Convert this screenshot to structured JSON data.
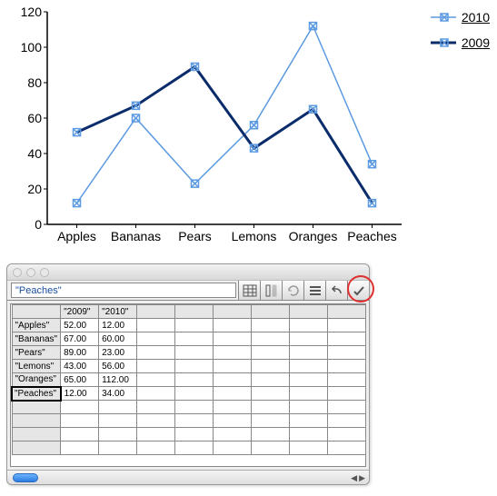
{
  "chart": {
    "type": "line",
    "categories": [
      "Apples",
      "Bananas",
      "Pears",
      "Lemons",
      "Oranges",
      "Peaches"
    ],
    "series": [
      {
        "name": "2010",
        "values": [
          12,
          60,
          23,
          56,
          112,
          34
        ],
        "color": "#5c9ae1",
        "line_width": 1.5,
        "marker": "x-box",
        "marker_size": 8
      },
      {
        "name": "2009",
        "values": [
          52,
          67,
          89,
          43,
          65,
          12
        ],
        "color": "#0b2c6b",
        "line_width": 3,
        "marker": "x-box",
        "marker_size": 8,
        "marker_color": "#5c9ae1"
      }
    ],
    "ylim": [
      0,
      120
    ],
    "ytick_step": 20,
    "axis_color": "#000000",
    "label_fontsize": 14,
    "tick_fontsize": 14,
    "background_color": "#ffffff"
  },
  "legend": {
    "position": "right",
    "items": [
      {
        "label": "2010",
        "series_index": 0
      },
      {
        "label": "2009",
        "series_index": 1
      }
    ]
  },
  "data_window": {
    "formula_bar_value": "\"Peaches\"",
    "toolbar_icons": [
      "table-icon",
      "column-icon",
      "refresh-icon",
      "rows-icon",
      "undo-icon",
      "confirm-icon"
    ],
    "highlighted_icon_index": 5,
    "columns": [
      "",
      "\"2009\"",
      "\"2010\""
    ],
    "rows": [
      [
        "\"Apples\"",
        "52.00",
        "12.00"
      ],
      [
        "\"Bananas\"",
        "67.00",
        "60.00"
      ],
      [
        "\"Pears\"",
        "89.00",
        "23.00"
      ],
      [
        "\"Lemons\"",
        "43.00",
        "56.00"
      ],
      [
        "\"Oranges\"",
        "65.00",
        "112.00"
      ],
      [
        "\"Peaches\"",
        "12.00",
        "34.00"
      ]
    ],
    "selected_row_header_index": 5,
    "blank_extra_cols": 6,
    "blank_extra_rows": 4
  }
}
